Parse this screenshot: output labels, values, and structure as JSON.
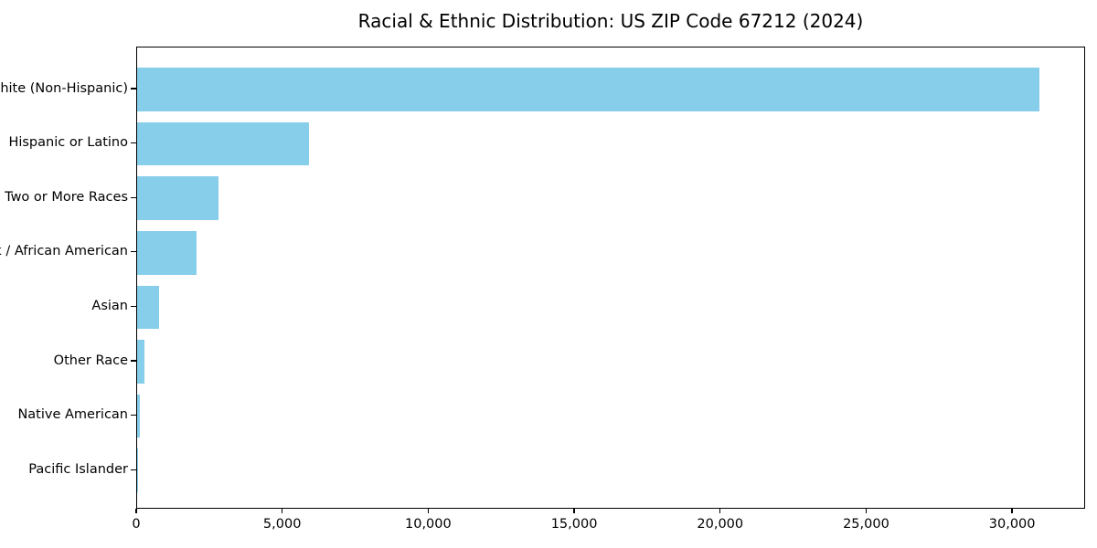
{
  "chart_data": {
    "type": "bar",
    "orientation": "horizontal",
    "title": "Racial & Ethnic Distribution: US ZIP Code 67212 (2024)",
    "categories": [
      "White (Non-Hispanic)",
      "Hispanic or Latino",
      "Two or More Races",
      "Black / African American",
      "Asian",
      "Other Race",
      "Native American",
      "Pacific Islander"
    ],
    "values": [
      30950,
      5900,
      2800,
      2040,
      750,
      250,
      80,
      20
    ],
    "xlabel": "",
    "ylabel": "",
    "xlim": [
      0,
      32500
    ],
    "xticks": {
      "values": [
        0,
        5000,
        10000,
        15000,
        20000,
        25000,
        30000
      ],
      "labels": [
        "0",
        "5,000",
        "10,000",
        "15,000",
        "20,000",
        "25,000",
        "30,000"
      ]
    },
    "bar_color": "#87CEEB",
    "background_color": "#ffffff",
    "spine_color": "#000000",
    "text_color": "#000000",
    "grid": false,
    "legend": null
  }
}
